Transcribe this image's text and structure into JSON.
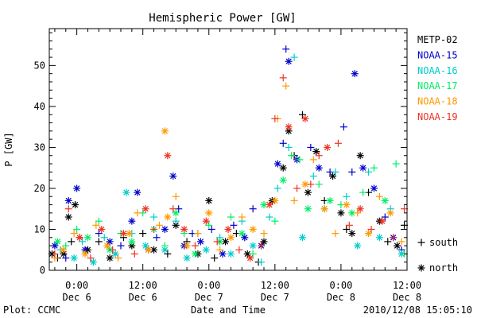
{
  "chart_data": {
    "type": "scatter",
    "title": "Hemispheric Power [GW]",
    "xlabel": "Date and Time",
    "ylabel": "P [GW]",
    "x_unit": "hours from 2010-12-06 00:00 UT",
    "xlim": [
      -5,
      60
    ],
    "ylim": [
      0,
      59
    ],
    "y_ticks": [
      "0",
      "10",
      "20",
      "30",
      "40",
      "50"
    ],
    "x_ticks": [
      {
        "x": 0,
        "time": "0:00",
        "date": "Dec 6"
      },
      {
        "x": 12,
        "time": "12:00",
        "date": "Dec 6"
      },
      {
        "x": 24,
        "time": "0:00",
        "date": "Dec 7"
      },
      {
        "x": 36,
        "time": "12:00",
        "date": "Dec 7"
      },
      {
        "x": 48,
        "time": "0:00",
        "date": "Dec 8"
      },
      {
        "x": 60,
        "time": "12:00",
        "date": "Dec 8"
      }
    ],
    "legend": {
      "placement": "right",
      "markers": [
        {
          "symbol": "+",
          "label": "south"
        },
        {
          "symbol": "*",
          "label": "north"
        }
      ]
    },
    "footer_left": "Plot: CCMC",
    "footer_right": "2010/12/08 15:05:10",
    "series": [
      {
        "name": "METP-02",
        "color": "#000000",
        "points": [
          [
            -4.5,
            4,
            "n"
          ],
          [
            -3.5,
            3,
            "s"
          ],
          [
            -2.4,
            4,
            "n"
          ],
          [
            -1.5,
            13,
            "n"
          ],
          [
            -1,
            7,
            "s"
          ],
          [
            -0.3,
            16,
            "n"
          ],
          [
            0.5,
            8,
            "s"
          ],
          [
            2,
            5,
            "n"
          ],
          [
            4,
            7,
            "s"
          ],
          [
            6,
            3,
            "n"
          ],
          [
            8.5,
            8,
            "s"
          ],
          [
            10,
            6,
            "n"
          ],
          [
            12,
            9,
            "s"
          ],
          [
            14,
            5,
            "n"
          ],
          [
            16.5,
            4,
            "s"
          ],
          [
            18,
            11,
            "n"
          ],
          [
            20,
            7,
            "s"
          ],
          [
            22,
            4,
            "n"
          ],
          [
            24,
            17,
            "n"
          ],
          [
            25,
            3,
            "s"
          ],
          [
            27,
            7,
            "n"
          ],
          [
            29,
            9,
            "s"
          ],
          [
            31,
            4,
            "n"
          ],
          [
            33,
            2,
            "s"
          ],
          [
            34,
            7,
            "n"
          ],
          [
            35.5,
            17,
            "n"
          ],
          [
            37.5,
            25,
            "n"
          ],
          [
            38.5,
            34,
            "n"
          ],
          [
            39.5,
            28,
            "s"
          ],
          [
            41,
            38,
            "s"
          ],
          [
            42,
            19,
            "n"
          ],
          [
            43.5,
            29,
            "n"
          ],
          [
            45,
            17,
            "s"
          ],
          [
            46.5,
            23,
            "n"
          ],
          [
            48,
            14,
            "n"
          ],
          [
            49,
            10,
            "s"
          ],
          [
            50,
            9,
            "n"
          ],
          [
            51.5,
            28,
            "n"
          ],
          [
            53,
            19,
            "s"
          ],
          [
            55,
            12,
            "n"
          ],
          [
            56.5,
            7,
            "s"
          ],
          [
            58.2,
            6,
            "n"
          ],
          [
            59.5,
            11,
            "s"
          ]
        ]
      },
      {
        "name": "NOAA-15",
        "color": "#0000cc",
        "points": [
          [
            -4,
            6,
            "n"
          ],
          [
            -2,
            3,
            "s"
          ],
          [
            -1.5,
            17,
            "n"
          ],
          [
            0,
            20,
            "n"
          ],
          [
            1.5,
            5,
            "n"
          ],
          [
            4,
            9,
            "s"
          ],
          [
            6,
            7,
            "n"
          ],
          [
            8,
            6,
            "s"
          ],
          [
            10,
            12,
            "n"
          ],
          [
            11,
            19,
            "n"
          ],
          [
            13,
            5,
            "n"
          ],
          [
            14.5,
            8,
            "s"
          ],
          [
            16,
            10,
            "n"
          ],
          [
            17.5,
            23,
            "n"
          ],
          [
            18.5,
            15,
            "s"
          ],
          [
            19.5,
            6,
            "n"
          ],
          [
            21,
            9,
            "s"
          ],
          [
            22.5,
            7,
            "n"
          ],
          [
            24.5,
            10,
            "s"
          ],
          [
            26.5,
            4,
            "n"
          ],
          [
            28.5,
            11,
            "s"
          ],
          [
            30.5,
            8,
            "n"
          ],
          [
            32,
            15,
            "s"
          ],
          [
            33.5,
            6,
            "n"
          ],
          [
            36.5,
            26,
            "n"
          ],
          [
            37.5,
            31,
            "s"
          ],
          [
            38,
            54,
            "s"
          ],
          [
            38.5,
            51,
            "n"
          ],
          [
            40,
            27,
            "n"
          ],
          [
            42.5,
            30,
            "s"
          ],
          [
            44,
            25,
            "n"
          ],
          [
            46,
            24,
            "s"
          ],
          [
            48.5,
            35,
            "s"
          ],
          [
            50,
            24,
            "s"
          ],
          [
            50.5,
            48,
            "n"
          ],
          [
            52,
            25,
            "n"
          ],
          [
            54,
            20,
            "n"
          ],
          [
            56,
            13,
            "s"
          ],
          [
            57.5,
            8,
            "n"
          ],
          [
            59,
            5,
            "s"
          ]
        ]
      },
      {
        "name": "NOAA-16",
        "color": "#00cccc",
        "points": [
          [
            -3,
            5,
            "s"
          ],
          [
            -0.5,
            3,
            "n"
          ],
          [
            1,
            7,
            "s"
          ],
          [
            3,
            2,
            "n"
          ],
          [
            5,
            8,
            "s"
          ],
          [
            7,
            4,
            "n"
          ],
          [
            9,
            19,
            "n"
          ],
          [
            10,
            9,
            "s"
          ],
          [
            12.5,
            6,
            "n"
          ],
          [
            14,
            13,
            "s"
          ],
          [
            16,
            5,
            "n"
          ],
          [
            18,
            12,
            "s"
          ],
          [
            20,
            3,
            "n"
          ],
          [
            22,
            9,
            "s"
          ],
          [
            23.5,
            5,
            "n"
          ],
          [
            26,
            8,
            "s"
          ],
          [
            28,
            4,
            "n"
          ],
          [
            30,
            12,
            "s"
          ],
          [
            32,
            6,
            "n"
          ],
          [
            33.5,
            2,
            "s"
          ],
          [
            35,
            13,
            "s"
          ],
          [
            36.5,
            20,
            "s"
          ],
          [
            38.5,
            30,
            "s"
          ],
          [
            39.5,
            52,
            "s"
          ],
          [
            41,
            8,
            "n"
          ],
          [
            43,
            23,
            "s"
          ],
          [
            45,
            15,
            "n"
          ],
          [
            47,
            24,
            "s"
          ],
          [
            49,
            18,
            "s"
          ],
          [
            51,
            6,
            "n"
          ],
          [
            53,
            24,
            "s"
          ],
          [
            55,
            8,
            "n"
          ],
          [
            57,
            15,
            "s"
          ],
          [
            59,
            4,
            "n"
          ]
        ]
      },
      {
        "name": "NOAA-17",
        "color": "#00ee66",
        "points": [
          [
            -3.5,
            7,
            "n"
          ],
          [
            -2,
            6,
            "s"
          ],
          [
            0,
            10,
            "s"
          ],
          [
            2,
            8,
            "n"
          ],
          [
            4,
            12,
            "s"
          ],
          [
            6,
            5,
            "n"
          ],
          [
            8,
            9,
            "s"
          ],
          [
            10,
            7,
            "n"
          ],
          [
            12,
            14,
            "s"
          ],
          [
            14,
            10,
            "n"
          ],
          [
            16,
            6,
            "s"
          ],
          [
            18,
            14,
            "n"
          ],
          [
            19.5,
            9,
            "s"
          ],
          [
            21.5,
            4,
            "n"
          ],
          [
            24,
            11,
            "s"
          ],
          [
            26,
            7,
            "n"
          ],
          [
            28,
            13,
            "s"
          ],
          [
            30,
            9,
            "n"
          ],
          [
            32,
            4,
            "s"
          ],
          [
            34,
            16,
            "n"
          ],
          [
            36,
            12,
            "s"
          ],
          [
            37.5,
            22,
            "n"
          ],
          [
            39,
            28,
            "s"
          ],
          [
            40.5,
            27,
            "s"
          ],
          [
            42,
            15,
            "n"
          ],
          [
            44,
            21,
            "s"
          ],
          [
            46,
            17,
            "n"
          ],
          [
            48,
            16,
            "s"
          ],
          [
            50,
            14,
            "n"
          ],
          [
            52,
            19,
            "s"
          ],
          [
            54,
            25,
            "s"
          ],
          [
            56,
            17,
            "n"
          ],
          [
            58,
            26,
            "s"
          ],
          [
            59.5,
            4,
            "s"
          ]
        ]
      },
      {
        "name": "NOAA-18",
        "color": "#ff9900",
        "points": [
          [
            -4,
            3,
            "s"
          ],
          [
            -2.5,
            5,
            "n"
          ],
          [
            -0.5,
            9,
            "s"
          ],
          [
            1.5,
            4,
            "n"
          ],
          [
            3.5,
            11,
            "s"
          ],
          [
            5.5,
            6,
            "n"
          ],
          [
            7.5,
            3,
            "s"
          ],
          [
            9.5,
            9,
            "n"
          ],
          [
            11,
            14,
            "s"
          ],
          [
            13,
            5,
            "n"
          ],
          [
            15,
            11,
            "s"
          ],
          [
            16,
            34,
            "n"
          ],
          [
            16.5,
            13,
            "n"
          ],
          [
            18,
            18,
            "s"
          ],
          [
            20,
            6,
            "n"
          ],
          [
            22,
            9,
            "s"
          ],
          [
            24,
            14,
            "n"
          ],
          [
            26,
            5,
            "s"
          ],
          [
            28,
            8,
            "n"
          ],
          [
            30,
            13,
            "s"
          ],
          [
            32,
            10,
            "n"
          ],
          [
            34,
            9,
            "s"
          ],
          [
            36,
            17,
            "n"
          ],
          [
            36.5,
            37,
            "s"
          ],
          [
            38,
            45,
            "s"
          ],
          [
            39.5,
            17,
            "s"
          ],
          [
            41.5,
            21,
            "n"
          ],
          [
            43,
            27,
            "s"
          ],
          [
            45,
            15,
            "n"
          ],
          [
            47,
            9,
            "s"
          ],
          [
            49,
            16,
            "n"
          ],
          [
            51,
            14,
            "s"
          ],
          [
            53,
            9,
            "n"
          ],
          [
            55,
            18,
            "s"
          ],
          [
            57,
            14,
            "n"
          ],
          [
            59,
            7,
            "s"
          ]
        ]
      },
      {
        "name": "NOAA-19",
        "color": "#ee3322",
        "points": [
          [
            -4,
            4,
            "s"
          ],
          [
            -1.5,
            15,
            "s"
          ],
          [
            0.5,
            8,
            "n"
          ],
          [
            2.5,
            3,
            "s"
          ],
          [
            4.5,
            10,
            "n"
          ],
          [
            6.5,
            5,
            "s"
          ],
          [
            8.5,
            9,
            "n"
          ],
          [
            10.5,
            4,
            "s"
          ],
          [
            12.5,
            15,
            "n"
          ],
          [
            14,
            10,
            "s"
          ],
          [
            16.5,
            28,
            "n"
          ],
          [
            17.5,
            15,
            "s"
          ],
          [
            19.5,
            10,
            "n"
          ],
          [
            21.5,
            6,
            "s"
          ],
          [
            23.5,
            12,
            "n"
          ],
          [
            25.5,
            7,
            "s"
          ],
          [
            27.5,
            10,
            "n"
          ],
          [
            29.5,
            5,
            "s"
          ],
          [
            31.5,
            3,
            "n"
          ],
          [
            33.5,
            6,
            "s"
          ],
          [
            35,
            16,
            "n"
          ],
          [
            36,
            37,
            "s"
          ],
          [
            37.5,
            47,
            "s"
          ],
          [
            38.5,
            35,
            "n"
          ],
          [
            40,
            20,
            "s"
          ],
          [
            41.5,
            37,
            "n"
          ],
          [
            42.5,
            21,
            "s"
          ],
          [
            44,
            28,
            "s"
          ],
          [
            45.5,
            30,
            "n"
          ],
          [
            47.5,
            31,
            "s"
          ],
          [
            49.5,
            11,
            "s"
          ],
          [
            51.5,
            15,
            "n"
          ],
          [
            53.5,
            10,
            "s"
          ],
          [
            55.5,
            12,
            "n"
          ],
          [
            57.5,
            8,
            "s"
          ],
          [
            59.5,
            15,
            "s"
          ]
        ]
      }
    ]
  }
}
